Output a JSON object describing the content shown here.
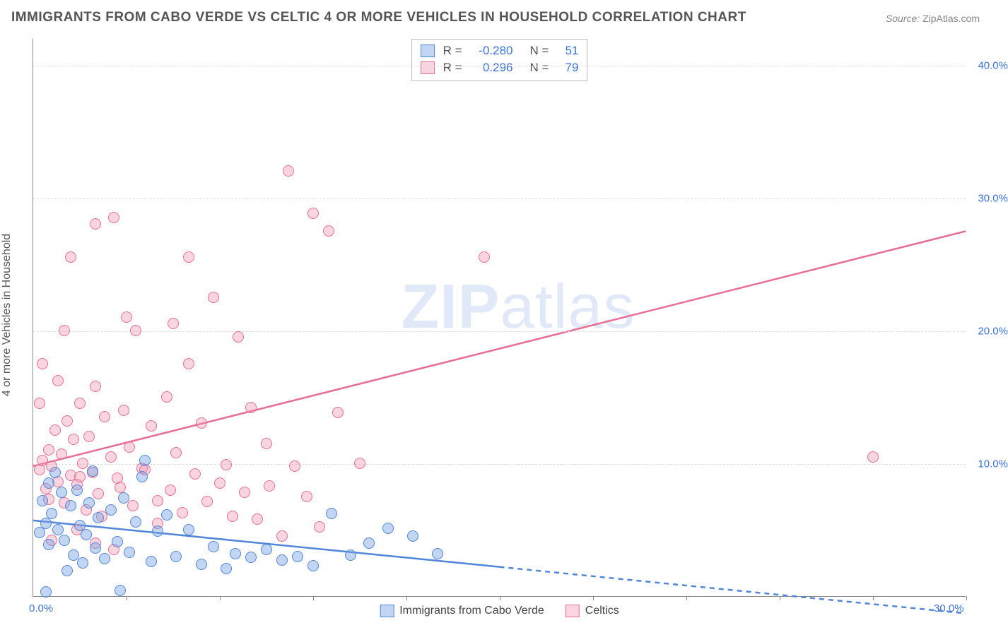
{
  "title": "IMMIGRANTS FROM CABO VERDE VS CELTIC 4 OR MORE VEHICLES IN HOUSEHOLD CORRELATION CHART",
  "source_label": "Source:",
  "source_value": "ZipAtlas.com",
  "ylabel": "4 or more Vehicles in Household",
  "watermark_bold": "ZIP",
  "watermark_rest": "atlas",
  "chart": {
    "type": "scatter",
    "xlim": [
      0,
      30
    ],
    "ylim": [
      0,
      42
    ],
    "xtick_labels": [
      "0.0%",
      "30.0%"
    ],
    "xtick_positions": [
      0,
      30
    ],
    "xtick_marks": [
      3,
      6,
      9,
      12,
      15,
      18,
      21,
      24,
      27,
      30
    ],
    "ytick_labels": [
      "10.0%",
      "20.0%",
      "30.0%",
      "40.0%"
    ],
    "ytick_positions": [
      10,
      20,
      30,
      40
    ],
    "grid_y": [
      10,
      20,
      30,
      40
    ],
    "background_color": "#ffffff",
    "grid_color": "#dddddd",
    "marker_radius": 8,
    "series": {
      "blue": {
        "label": "Immigrants from Cabo Verde",
        "color_fill": "#78a5e6",
        "color_stroke": "#4f86db",
        "R": "-0.280",
        "N": "51",
        "trend": {
          "x1": 0,
          "y1": 5.7,
          "x2": 15,
          "y2": 2.2,
          "dash_to_x": 30,
          "dash_to_y": -1.3
        },
        "points": [
          [
            0.2,
            4.8
          ],
          [
            0.3,
            7.2
          ],
          [
            0.4,
            5.5
          ],
          [
            0.5,
            8.5
          ],
          [
            0.5,
            3.9
          ],
          [
            0.6,
            6.2
          ],
          [
            0.7,
            9.3
          ],
          [
            0.8,
            5.0
          ],
          [
            0.9,
            7.8
          ],
          [
            1.0,
            4.2
          ],
          [
            1.1,
            1.9
          ],
          [
            1.2,
            6.8
          ],
          [
            1.3,
            3.1
          ],
          [
            1.4,
            8.0
          ],
          [
            1.5,
            5.3
          ],
          [
            1.6,
            2.5
          ],
          [
            1.7,
            4.6
          ],
          [
            1.8,
            7.0
          ],
          [
            1.9,
            9.4
          ],
          [
            2.0,
            3.6
          ],
          [
            2.1,
            5.9
          ],
          [
            2.3,
            2.8
          ],
          [
            2.5,
            6.5
          ],
          [
            2.7,
            4.1
          ],
          [
            2.9,
            7.4
          ],
          [
            3.1,
            3.3
          ],
          [
            3.3,
            5.6
          ],
          [
            3.5,
            9.0
          ],
          [
            3.8,
            2.6
          ],
          [
            4.0,
            4.9
          ],
          [
            4.3,
            6.1
          ],
          [
            4.6,
            3.0
          ],
          [
            5.0,
            5.0
          ],
          [
            5.4,
            2.4
          ],
          [
            5.8,
            3.7
          ],
          [
            6.2,
            2.1
          ],
          [
            6.5,
            3.2
          ],
          [
            7.0,
            2.9
          ],
          [
            7.5,
            3.5
          ],
          [
            8.0,
            2.7
          ],
          [
            8.5,
            3.0
          ],
          [
            9.0,
            2.3
          ],
          [
            9.6,
            6.2
          ],
          [
            10.2,
            3.1
          ],
          [
            10.8,
            4.0
          ],
          [
            11.4,
            5.1
          ],
          [
            12.2,
            4.5
          ],
          [
            13.0,
            3.2
          ],
          [
            0.4,
            0.3
          ],
          [
            2.8,
            0.4
          ],
          [
            3.6,
            10.2
          ]
        ]
      },
      "pink": {
        "label": "Celtics",
        "color_fill": "#f096af",
        "color_stroke": "#e86d95",
        "R": "0.296",
        "N": "79",
        "trend": {
          "x1": 0,
          "y1": 9.8,
          "x2": 30,
          "y2": 27.5
        },
        "points": [
          [
            0.2,
            9.5
          ],
          [
            0.3,
            10.2
          ],
          [
            0.4,
            8.1
          ],
          [
            0.5,
            11.0
          ],
          [
            0.5,
            7.3
          ],
          [
            0.6,
            9.8
          ],
          [
            0.7,
            12.5
          ],
          [
            0.8,
            8.6
          ],
          [
            0.9,
            10.7
          ],
          [
            1.0,
            7.0
          ],
          [
            1.1,
            13.2
          ],
          [
            1.2,
            9.1
          ],
          [
            1.3,
            11.8
          ],
          [
            1.4,
            8.4
          ],
          [
            1.5,
            14.5
          ],
          [
            1.6,
            10.0
          ],
          [
            1.7,
            6.5
          ],
          [
            1.8,
            12.0
          ],
          [
            1.9,
            9.3
          ],
          [
            2.0,
            15.8
          ],
          [
            2.1,
            7.7
          ],
          [
            2.3,
            13.5
          ],
          [
            2.5,
            10.5
          ],
          [
            2.7,
            8.9
          ],
          [
            2.9,
            14.0
          ],
          [
            3.1,
            11.2
          ],
          [
            3.3,
            20.0
          ],
          [
            3.5,
            9.6
          ],
          [
            3.8,
            12.8
          ],
          [
            4.0,
            7.2
          ],
          [
            4.3,
            15.0
          ],
          [
            4.6,
            10.8
          ],
          [
            5.0,
            17.5
          ],
          [
            5.4,
            13.0
          ],
          [
            5.8,
            22.5
          ],
          [
            6.2,
            9.9
          ],
          [
            6.6,
            19.5
          ],
          [
            7.0,
            14.2
          ],
          [
            7.5,
            11.5
          ],
          [
            8.2,
            32.0
          ],
          [
            9.0,
            28.8
          ],
          [
            2.6,
            28.5
          ],
          [
            2.0,
            28.0
          ],
          [
            1.2,
            25.5
          ],
          [
            5.0,
            25.5
          ],
          [
            3.0,
            21.0
          ],
          [
            4.5,
            20.5
          ],
          [
            9.5,
            27.5
          ],
          [
            14.5,
            25.5
          ],
          [
            9.8,
            13.8
          ],
          [
            10.5,
            10.0
          ],
          [
            27.0,
            10.5
          ],
          [
            0.3,
            17.5
          ],
          [
            1.0,
            20.0
          ],
          [
            1.5,
            9.0
          ],
          [
            2.2,
            6.0
          ],
          [
            2.8,
            8.2
          ],
          [
            3.2,
            6.8
          ],
          [
            3.6,
            9.5
          ],
          [
            4.0,
            5.5
          ],
          [
            4.4,
            8.0
          ],
          [
            4.8,
            6.3
          ],
          [
            5.2,
            9.2
          ],
          [
            5.6,
            7.1
          ],
          [
            6.0,
            8.5
          ],
          [
            6.4,
            6.0
          ],
          [
            6.8,
            7.8
          ],
          [
            7.2,
            5.8
          ],
          [
            7.6,
            8.3
          ],
          [
            8.0,
            4.5
          ],
          [
            8.4,
            9.8
          ],
          [
            8.8,
            7.5
          ],
          [
            9.2,
            5.2
          ],
          [
            0.6,
            4.2
          ],
          [
            1.4,
            5.0
          ],
          [
            2.0,
            4.0
          ],
          [
            2.6,
            3.5
          ],
          [
            0.2,
            14.5
          ],
          [
            0.8,
            16.2
          ]
        ]
      }
    },
    "legend_top": [
      {
        "swatch": "blue",
        "R_label": "R =",
        "R_val": "-0.280",
        "N_label": "N =",
        "N_val": "51"
      },
      {
        "swatch": "pink",
        "R_label": "R =",
        "R_val": "0.296",
        "N_label": "N =",
        "N_val": "79"
      }
    ],
    "legend_bottom": [
      {
        "swatch": "blue",
        "label": "Immigrants from Cabo Verde"
      },
      {
        "swatch": "pink",
        "label": "Celtics"
      }
    ]
  }
}
